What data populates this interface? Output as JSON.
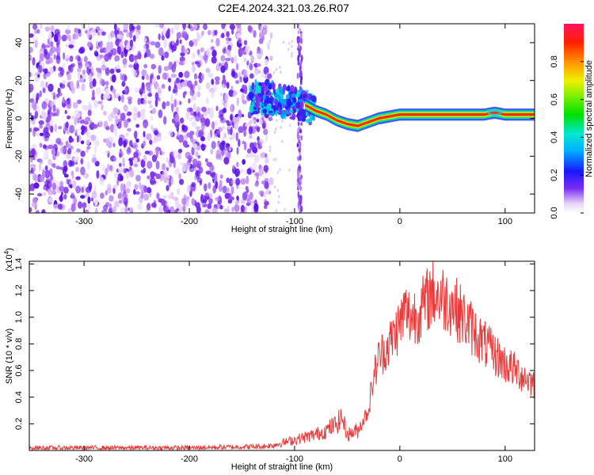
{
  "title": "C2E4.2024.321.03.26.R07",
  "spectrogram": {
    "type": "heatmap",
    "xlabel": "Height of straight line (km)",
    "ylabel": "Frequency (Hz)",
    "xlim": [
      -352,
      128
    ],
    "ylim": [
      -50,
      50
    ],
    "xticks": [
      -300,
      -200,
      -100,
      0,
      100
    ],
    "yticks": [
      -40,
      -20,
      0,
      20,
      40
    ],
    "colorbar": {
      "label": "Normalized spectral amplitude",
      "range": [
        0,
        1
      ],
      "ticks": [
        0.0,
        0.2,
        0.4,
        0.6,
        0.8
      ]
    },
    "ridge": {
      "x": [
        -140,
        -125,
        -110,
        -100,
        -90,
        -80,
        -70,
        -60,
        -50,
        -40,
        -30,
        -20,
        -10,
        0,
        20,
        40,
        60,
        80,
        90,
        100,
        128
      ],
      "y": [
        10,
        11,
        9,
        8,
        7,
        4,
        2,
        -1,
        -3,
        -4,
        -2,
        0,
        1,
        2,
        2,
        2,
        2,
        2,
        3,
        2,
        2
      ]
    }
  },
  "snr": {
    "type": "line",
    "xlabel": "Height of straight line (km)",
    "ylabel": "SNR (10 * v/v)",
    "scale_label": "(x10",
    "scale_exp": "4",
    "scale_close": ")",
    "xlim": [
      -352,
      128
    ],
    "ylim": [
      0,
      1.42
    ],
    "xticks": [
      -300,
      -200,
      -100,
      0,
      100
    ],
    "yticks": [
      0.2,
      0.4,
      0.6,
      0.8,
      1.0,
      1.2,
      1.4
    ],
    "color": "#e83a3a",
    "series": {
      "x": [
        -352,
        -300,
        -200,
        -130,
        -120,
        -110,
        -100,
        -90,
        -80,
        -70,
        -60,
        -55,
        -50,
        -40,
        -30,
        -25,
        -20,
        -10,
        0,
        5,
        10,
        20,
        30,
        40,
        50,
        60,
        70,
        80,
        90,
        100,
        110,
        128
      ],
      "y": [
        0.02,
        0.02,
        0.02,
        0.03,
        0.04,
        0.06,
        0.08,
        0.1,
        0.12,
        0.15,
        0.2,
        0.25,
        0.12,
        0.15,
        0.3,
        0.55,
        0.7,
        0.8,
        0.95,
        1.05,
        1.0,
        1.05,
        1.18,
        1.15,
        1.1,
        1.0,
        0.9,
        0.8,
        0.72,
        0.65,
        0.6,
        0.5
      ]
    }
  }
}
